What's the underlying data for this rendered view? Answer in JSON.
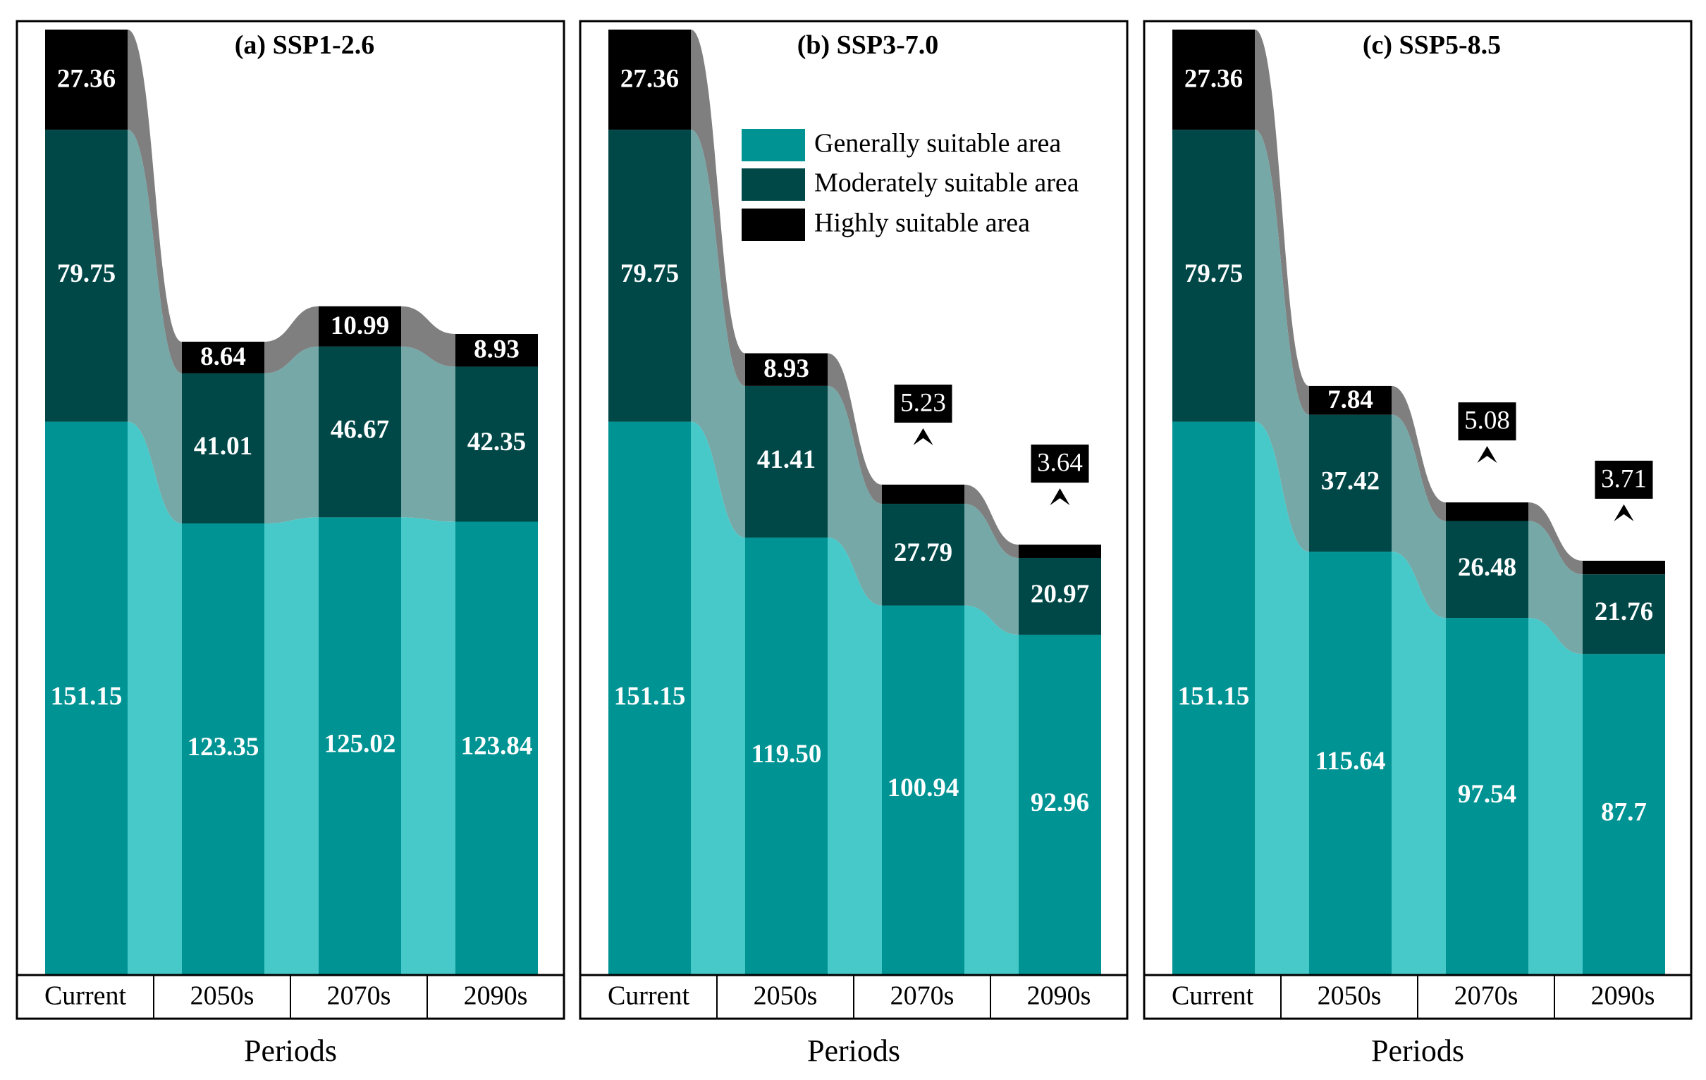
{
  "colors": {
    "generally": "#009393",
    "moderately": "#004848",
    "highly": "#000000",
    "flow_generally": "#47C9C9",
    "flow_moderately": "#76A8A7",
    "flow_highly": "#7F7F7F",
    "frame": "#000000"
  },
  "legend": {
    "generally": "Generally suitable area",
    "moderately": "Moderately suitable area",
    "highly": "Highly suitable area"
  },
  "chart_data": [
    {
      "type": "bar",
      "title": "(a) SSP1-2.6",
      "xlabel": "Periods",
      "categories": [
        "Current",
        "2050s",
        "2070s",
        "2090s"
      ],
      "series": [
        {
          "name": "Generally suitable area",
          "values": [
            151.15,
            123.35,
            125.02,
            123.84
          ],
          "labels": [
            "151.15",
            "123.35",
            "125.02",
            "123.84"
          ]
        },
        {
          "name": "Moderately suitable area",
          "values": [
            79.75,
            41.01,
            46.67,
            42.35
          ],
          "labels": [
            "79.75",
            "41.01",
            "46.67",
            "42.35"
          ]
        },
        {
          "name": "Highly suitable area",
          "values": [
            27.36,
            8.64,
            10.99,
            8.93
          ],
          "labels": [
            "27.36",
            "8.64",
            "10.99",
            "8.93"
          ]
        }
      ],
      "ylim": [
        0,
        258.26
      ]
    },
    {
      "type": "bar",
      "title": "(b) SSP3-7.0",
      "xlabel": "Periods",
      "categories": [
        "Current",
        "2050s",
        "2070s",
        "2090s"
      ],
      "series": [
        {
          "name": "Generally suitable area",
          "values": [
            151.15,
            119.5,
            100.94,
            92.96
          ],
          "labels": [
            "151.15",
            "119.50",
            "100.94",
            "92.96"
          ]
        },
        {
          "name": "Moderately suitable area",
          "values": [
            79.75,
            41.41,
            27.79,
            20.97
          ],
          "labels": [
            "79.75",
            "41.41",
            "27.79",
            "20.97"
          ]
        },
        {
          "name": "Highly suitable area",
          "values": [
            27.36,
            8.93,
            5.23,
            3.64
          ],
          "labels": [
            "27.36",
            "8.93",
            "5.23",
            "3.64"
          ]
        }
      ],
      "ylim": [
        0,
        258.26
      ]
    },
    {
      "type": "bar",
      "title": "(c) SSP5-8.5",
      "xlabel": "Periods",
      "categories": [
        "Current",
        "2050s",
        "2070s",
        "2090s"
      ],
      "series": [
        {
          "name": "Generally suitable area",
          "values": [
            151.15,
            115.64,
            97.54,
            87.7
          ],
          "labels": [
            "151.15",
            "115.64",
            "97.54",
            "87.7"
          ]
        },
        {
          "name": "Moderately suitable area",
          "values": [
            79.75,
            37.42,
            26.48,
            21.76
          ],
          "labels": [
            "79.75",
            "37.42",
            "26.48",
            "21.76"
          ]
        },
        {
          "name": "Highly suitable area",
          "values": [
            27.36,
            7.84,
            5.08,
            3.71
          ],
          "labels": [
            "27.36",
            "7.84",
            "5.08",
            "3.71"
          ]
        }
      ],
      "ylim": [
        0,
        258.26
      ]
    }
  ]
}
